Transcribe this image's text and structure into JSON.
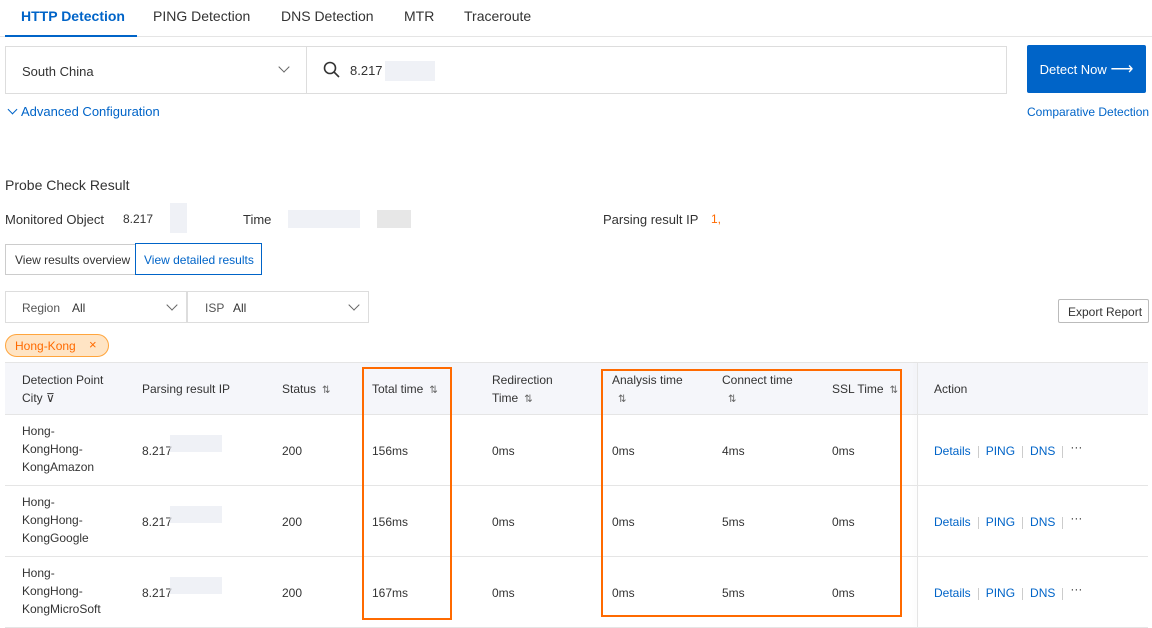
{
  "tabs": [
    {
      "label": "HTTP Detection",
      "active": true
    },
    {
      "label": "PING Detection"
    },
    {
      "label": "DNS Detection"
    },
    {
      "label": "MTR"
    },
    {
      "label": "Traceroute"
    }
  ],
  "search": {
    "region": "South China",
    "target": "8.217",
    "detect_label": "Detect Now",
    "detect_arrow": "⟶",
    "advanced": "Advanced Configuration",
    "comparative": "Comparative Detection"
  },
  "result": {
    "title": "Probe Check Result",
    "monitored_label": "Monitored Object",
    "monitored_value": "8.217",
    "time_label": "Time",
    "parsing_label": "Parsing result IP",
    "parsing_value": "1,",
    "view_overview": "View results overview",
    "view_detailed": "View detailed results",
    "region_label": "Region",
    "region_value": "All",
    "isp_label": "ISP",
    "isp_value": "All",
    "export": "Export Report",
    "tag": "Hong-Kong"
  },
  "table": {
    "headers": {
      "city1": "Detection Point",
      "city2": "City",
      "ip": "Parsing result IP",
      "status": "Status",
      "total": "Total time",
      "redir1": "Redirection",
      "redir2": "Time",
      "analysis": "Analysis time",
      "connect": "Connect time",
      "ssl": "SSL Time",
      "action": "Action"
    },
    "rows": [
      {
        "city": [
          "Hong-",
          "KongHong-",
          "KongAmazon"
        ],
        "ip": "8.217",
        "status": "200",
        "total": "156ms",
        "redir": "0ms",
        "analysis": "0ms",
        "connect": "4ms",
        "ssl": "0ms"
      },
      {
        "city": [
          "Hong-",
          "KongHong-",
          "KongGoogle"
        ],
        "ip": "8.217",
        "status": "200",
        "total": "156ms",
        "redir": "0ms",
        "analysis": "0ms",
        "connect": "5ms",
        "ssl": "0ms"
      },
      {
        "city": [
          "Hong-",
          "KongHong-",
          "KongMicroSoft"
        ],
        "ip": "8.217",
        "status": "200",
        "total": "167ms",
        "redir": "0ms",
        "analysis": "0ms",
        "connect": "5ms",
        "ssl": "0ms"
      }
    ],
    "actions": {
      "details": "Details",
      "ping": "PING",
      "dns": "DNS",
      "more": "···"
    }
  },
  "colors": {
    "accent": "#0064c8",
    "highlight": "#ff6a00",
    "tag_bg": "#ffe4c4"
  }
}
